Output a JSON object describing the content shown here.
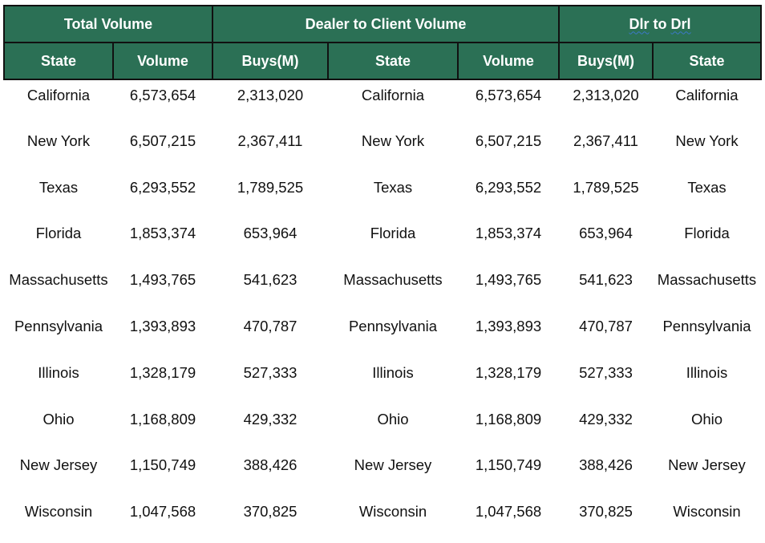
{
  "header": {
    "groups": [
      {
        "label": "Total Volume"
      },
      {
        "label": "Dealer to Client Volume"
      },
      {
        "label_parts": [
          "Dlr",
          " to ",
          "Drl"
        ]
      }
    ],
    "columns": [
      "State",
      "Volume",
      "Buys(M)",
      "State",
      "Volume",
      "Buys(M)",
      "State"
    ]
  },
  "rows": [
    [
      "California",
      "6,573,654",
      "2,313,020",
      "California",
      "6,573,654",
      "2,313,020",
      "California"
    ],
    [
      "New York",
      "6,507,215",
      "2,367,411",
      "New York",
      "6,507,215",
      "2,367,411",
      "New York"
    ],
    [
      "Texas",
      "6,293,552",
      "1,789,525",
      "Texas",
      "6,293,552",
      "1,789,525",
      "Texas"
    ],
    [
      "Florida",
      "1,853,374",
      "653,964",
      "Florida",
      "1,853,374",
      "653,964",
      "Florida"
    ],
    [
      "Massachusetts",
      "1,493,765",
      "541,623",
      "Massachusetts",
      "1,493,765",
      "541,623",
      "Massachusetts"
    ],
    [
      "Pennsylvania",
      "1,393,893",
      "470,787",
      "Pennsylvania",
      "1,393,893",
      "470,787",
      "Pennsylvania"
    ],
    [
      "Illinois",
      "1,328,179",
      "527,333",
      "Illinois",
      "1,328,179",
      "527,333",
      "Illinois"
    ],
    [
      "Ohio",
      "1,168,809",
      "429,332",
      "Ohio",
      "1,168,809",
      "429,332",
      "Ohio"
    ],
    [
      "New Jersey",
      "1,150,749",
      "388,426",
      "New Jersey",
      "1,150,749",
      "388,426",
      "New Jersey"
    ],
    [
      "Wisconsin",
      "1,047,568",
      "370,825",
      "Wisconsin",
      "1,047,568",
      "370,825",
      "Wisconsin"
    ]
  ],
  "colors": {
    "header_fill": "#2b7055",
    "header_text": "#ffffff",
    "border": "#111111",
    "spellcheck_underline": "#3b78c8"
  }
}
